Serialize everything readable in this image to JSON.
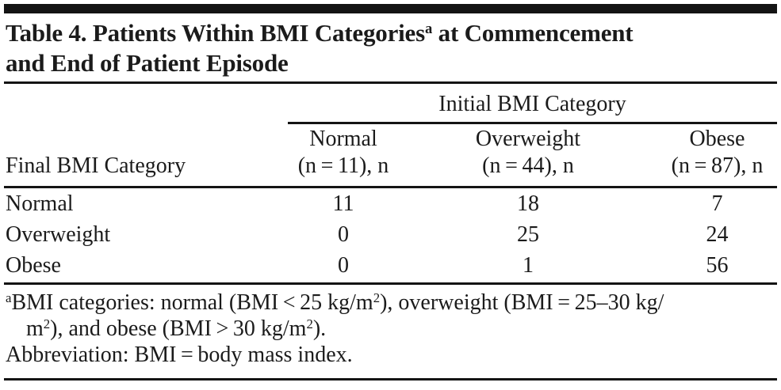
{
  "page": {
    "background": "#ffffff",
    "rule_color": "#141414",
    "text_color": "#1b1b1b"
  },
  "table": {
    "title_line1_segments": [
      {
        "t": "Table 4. Patients Within BMI Categories"
      },
      {
        "t": "a",
        "sup": true
      },
      {
        "t": " at Commencement"
      }
    ],
    "title_line2": "and End of Patient Episode",
    "spanner_label": "Initial BMI Category",
    "stub_header": "Final BMI Category",
    "columns": [
      {
        "label": "Normal",
        "n": "(n = 11), n"
      },
      {
        "label": "Overweight",
        "n": "(n = 44), n"
      },
      {
        "label": "Obese",
        "n": "(n = 87), n"
      }
    ],
    "rows": [
      {
        "label": "Normal",
        "values": [
          "11",
          "18",
          "7"
        ]
      },
      {
        "label": "Overweight",
        "values": [
          "0",
          "25",
          "24"
        ]
      },
      {
        "label": "Obese",
        "values": [
          "0",
          "1",
          "56"
        ]
      }
    ],
    "footnotes": {
      "line1_segments": [
        {
          "t": "a",
          "sup": true
        },
        {
          "t": "BMI categories: normal (BMI < 25 kg/m"
        },
        {
          "t": "2",
          "sup": true
        },
        {
          "t": "), overweight (BMI = 25–30 kg/"
        }
      ],
      "line2_segments": [
        {
          "t": "m"
        },
        {
          "t": "2",
          "sup": true
        },
        {
          "t": "), and obese (BMI > 30 kg/m"
        },
        {
          "t": "2",
          "sup": true
        },
        {
          "t": ")."
        }
      ],
      "line3": "Abbreviation: BMI = body mass index."
    }
  }
}
